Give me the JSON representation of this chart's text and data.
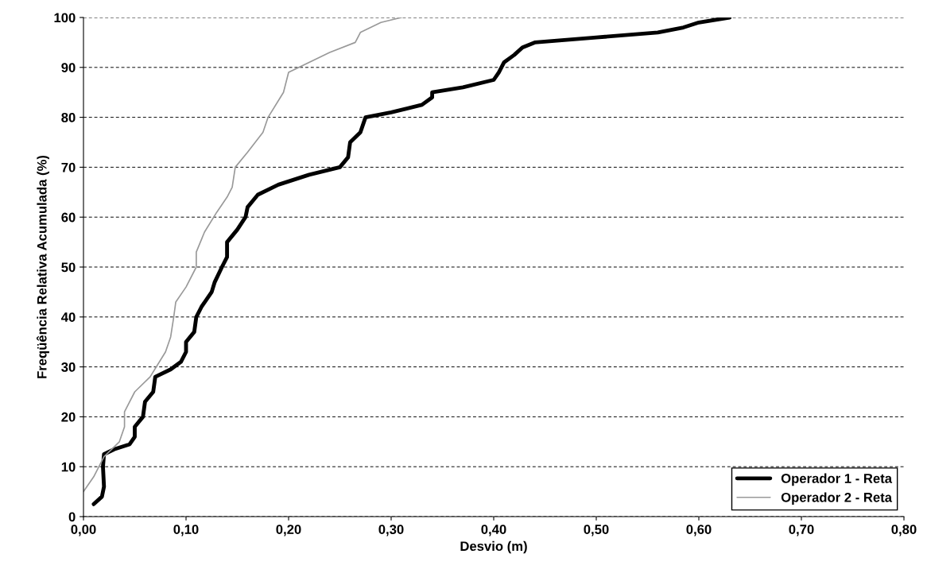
{
  "chart_data": {
    "type": "line",
    "xlabel": "Desvio (m)",
    "ylabel": "Freqüência Relativa Acumulada (%)",
    "xlim": [
      0,
      0.8
    ],
    "xticks": [
      {
        "value": 0,
        "label": "0,00"
      },
      {
        "value": 0.1,
        "label": "0,10"
      },
      {
        "value": 0.2,
        "label": "0,20"
      },
      {
        "value": 0.3,
        "label": "0,30"
      },
      {
        "value": 0.4,
        "label": "0,40"
      },
      {
        "value": 0.5,
        "label": "0,50"
      },
      {
        "value": 0.6,
        "label": "0,60"
      },
      {
        "value": 0.7,
        "label": "0,70"
      },
      {
        "value": 0.8,
        "label": "0,80"
      }
    ],
    "ylim": [
      0,
      100
    ],
    "yticks": [
      0,
      10,
      20,
      30,
      40,
      50,
      60,
      70,
      80,
      90,
      100
    ],
    "grid": "y",
    "legend": "bottom right",
    "marker": "none",
    "line_style": "solid",
    "series": [
      {
        "name": "Operador 1 - Reta",
        "color": "#000000",
        "x": [
          0.01,
          0.018,
          0.02,
          0.019,
          0.02,
          0.03,
          0.045,
          0.05,
          0.05,
          0.058,
          0.06,
          0.068,
          0.07,
          0.085,
          0.095,
          0.1,
          0.1,
          0.108,
          0.11,
          0.115,
          0.125,
          0.128,
          0.135,
          0.14,
          0.14,
          0.15,
          0.158,
          0.16,
          0.17,
          0.19,
          0.22,
          0.25,
          0.258,
          0.26,
          0.27,
          0.275,
          0.3,
          0.33,
          0.34,
          0.34,
          0.37,
          0.4,
          0.405,
          0.41,
          0.42,
          0.428,
          0.44,
          0.5,
          0.56,
          0.585,
          0.6,
          0.63
        ],
        "values": [
          2.5,
          4,
          6,
          10,
          12.5,
          13.5,
          14.5,
          16,
          18,
          20,
          23,
          25,
          28,
          29.5,
          31,
          33,
          35,
          37,
          40,
          42,
          45,
          47,
          50,
          52,
          55,
          57.5,
          60,
          62,
          64.5,
          66.5,
          68.5,
          70,
          72,
          75,
          77,
          80,
          81,
          82.5,
          84,
          85,
          86,
          87.5,
          89,
          91,
          92.5,
          94,
          95,
          96,
          97,
          98,
          99,
          100
        ]
      },
      {
        "name": "Operador 2 - Reta",
        "color": "#999999",
        "x": [
          0.0,
          0.01,
          0.02,
          0.035,
          0.04,
          0.04,
          0.05,
          0.065,
          0.08,
          0.085,
          0.088,
          0.09,
          0.1,
          0.11,
          0.11,
          0.118,
          0.13,
          0.14,
          0.145,
          0.148,
          0.16,
          0.175,
          0.18,
          0.195,
          0.2,
          0.22,
          0.24,
          0.265,
          0.27,
          0.29,
          0.31
        ],
        "values": [
          5,
          8,
          12,
          15,
          18,
          21,
          25,
          28,
          33,
          36,
          40,
          43,
          46,
          50,
          53,
          57,
          61,
          64,
          66,
          70,
          73,
          77,
          80,
          85,
          89,
          91,
          93,
          95,
          97,
          99,
          100
        ]
      }
    ]
  }
}
